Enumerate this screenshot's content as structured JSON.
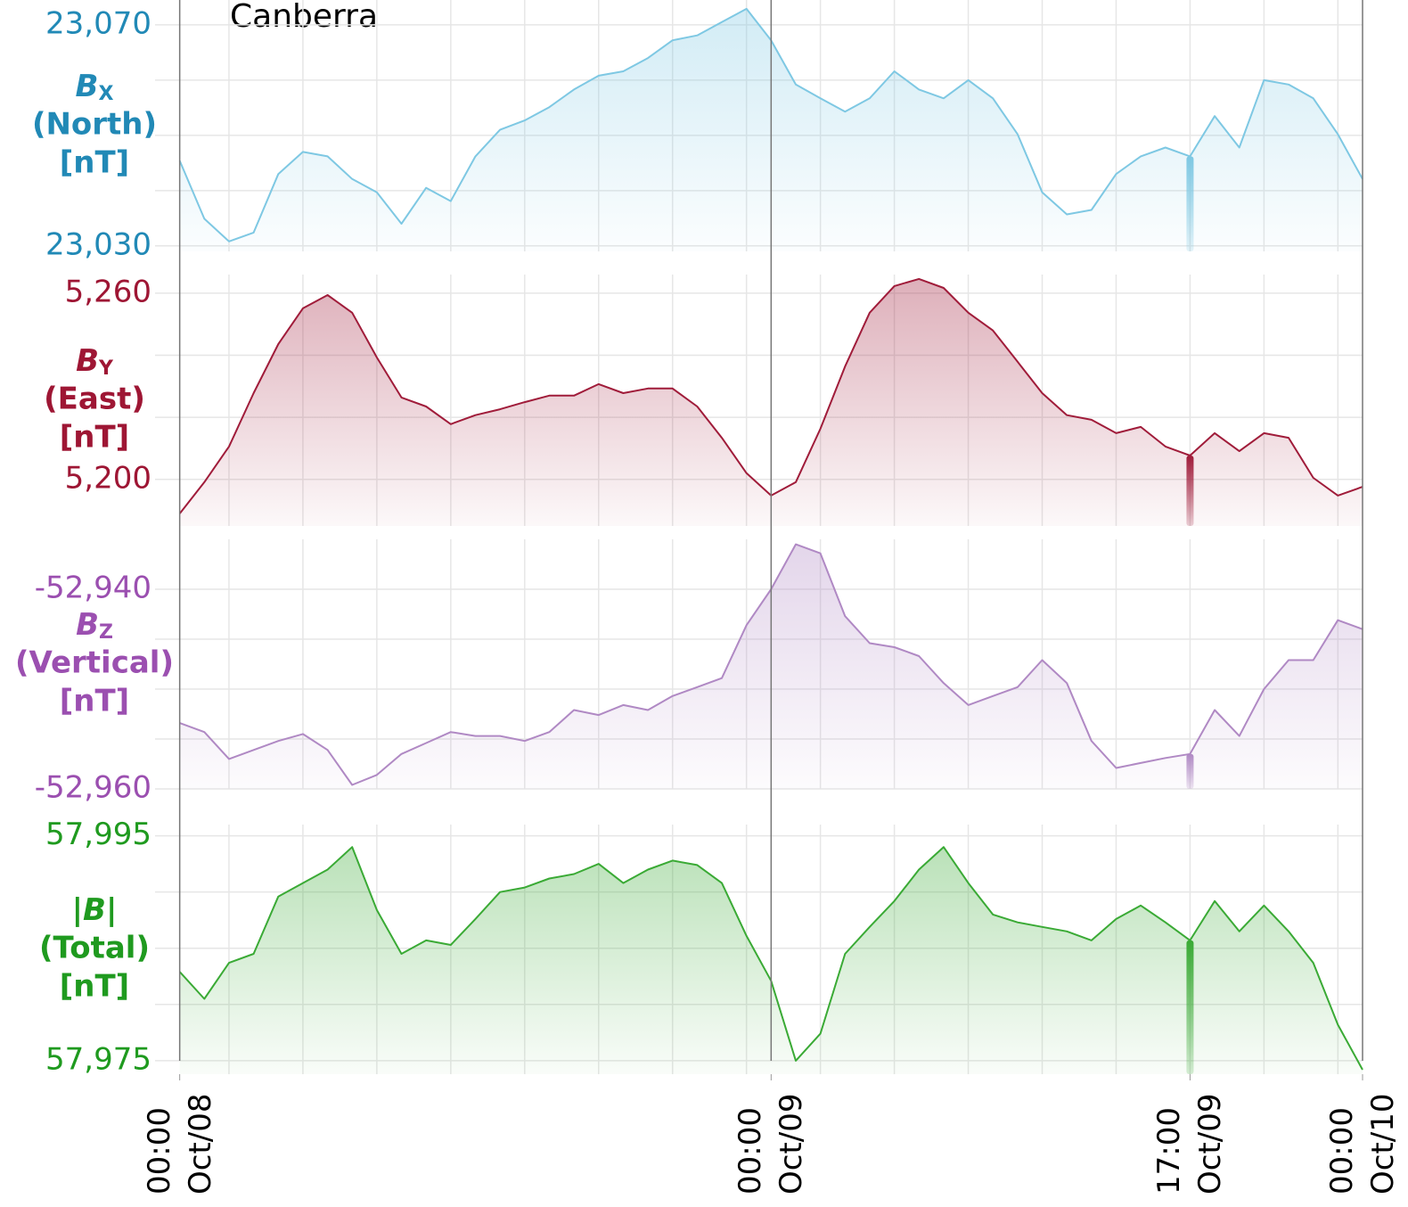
{
  "chart_data": {
    "type": "line",
    "title": "Canberra",
    "x": [
      0,
      1,
      2,
      3,
      4,
      5,
      6,
      7,
      8,
      9,
      10,
      11,
      12,
      13,
      14,
      15,
      16,
      17,
      18,
      19,
      20,
      21,
      22,
      23,
      24,
      25,
      26,
      27,
      28,
      29,
      30,
      31,
      32,
      33,
      34,
      35,
      36,
      37,
      38,
      39,
      40,
      41,
      42,
      43,
      44,
      45,
      46,
      47,
      48
    ],
    "xlim": [
      -1,
      48
    ],
    "xticks": [
      {
        "value": 0,
        "label": "00:00 Oct/08"
      },
      {
        "value": 24,
        "label": "00:00 Oct/09"
      },
      {
        "value": 41,
        "label": "17:00 Oct/09"
      },
      {
        "value": 48,
        "label": "00:00 Oct/10"
      }
    ],
    "xgrid": [
      2,
      5,
      8,
      11,
      14,
      17,
      20,
      23,
      26,
      29,
      32,
      35,
      38,
      41,
      44,
      47
    ],
    "day_boundaries": [
      0,
      24,
      48
    ],
    "highlight_x": 41,
    "series": [
      {
        "symbol": "B",
        "subscript": "X",
        "label_lines": [
          "(North)",
          "[nT]"
        ],
        "color": "#7ec8e3",
        "label_color": "#2189b6",
        "values": [
          23045.4,
          23034.9,
          23030.8,
          23032.4,
          23043,
          23047,
          23046.2,
          23042.1,
          23039.7,
          23034,
          23040.5,
          23038.1,
          23046.2,
          23051,
          23052.7,
          23055.1,
          23058.3,
          23060.8,
          23061.6,
          23064,
          23067.2,
          23068.1,
          23070.5,
          23072.9,
          23067.2,
          23059.2,
          23056.7,
          23054.3,
          23056.7,
          23061.6,
          23058.3,
          23056.7,
          23060,
          23056.7,
          23050.2,
          23039.7,
          23035.7,
          23036.5,
          23043,
          23046.2,
          23047.8,
          23046.2,
          23053.5,
          23047.8,
          23060,
          23059.2,
          23056.7,
          23050.2,
          23042.1
        ],
        "ylim": [
          23029,
          23074.5
        ],
        "yticks": [
          {
            "value": 23030,
            "label": "23,030"
          },
          {
            "value": 23070,
            "label": "23,070"
          }
        ],
        "ygrid": [
          23040,
          23050,
          23060
        ]
      },
      {
        "symbol": "B",
        "subscript": "Y",
        "label_lines": [
          "(East)",
          "[nT]"
        ],
        "color": "#a01c3a",
        "label_color": "#9e1634",
        "values": [
          5189,
          5199.1,
          5210.6,
          5227.8,
          5243.6,
          5255.1,
          5259.4,
          5253.7,
          5239.3,
          5226.4,
          5223.5,
          5217.8,
          5220.7,
          5222.6,
          5224.9,
          5227,
          5227,
          5230.7,
          5227.8,
          5229.3,
          5229.3,
          5223.5,
          5213.4,
          5202,
          5194.8,
          5199.1,
          5216.3,
          5236.4,
          5253.7,
          5262.3,
          5264.6,
          5261.7,
          5253.7,
          5248,
          5237.9,
          5227.8,
          5220.7,
          5219.2,
          5214.9,
          5216.9,
          5210.6,
          5207.7,
          5214.9,
          5209.1,
          5214.9,
          5213.4,
          5200.5,
          5194.8,
          5197.6
        ],
        "ylim": [
          5185,
          5266
        ],
        "yticks": [
          {
            "value": 5200,
            "label": "5,200"
          },
          {
            "value": 5260,
            "label": "5,260"
          }
        ],
        "ygrid": [
          5220,
          5240
        ]
      },
      {
        "symbol": "B",
        "subscript": "Z",
        "label_lines": [
          "(Vertical)",
          "[nT]"
        ],
        "color": "#b089c4",
        "label_color": "#9b4fb0",
        "values": [
          -52953.4,
          -52954.3,
          -52957,
          -52956.1,
          -52955.2,
          -52954.5,
          -52956.1,
          -52959.6,
          -52958.6,
          -52956.5,
          -52955.4,
          -52954.3,
          -52954.7,
          -52954.7,
          -52955.2,
          -52954.3,
          -52952.1,
          -52952.6,
          -52951.6,
          -52952.1,
          -52950.7,
          -52949.8,
          -52948.9,
          -52943.6,
          -52940,
          -52935.5,
          -52936.4,
          -52942.7,
          -52945.4,
          -52945.8,
          -52946.7,
          -52949.4,
          -52951.6,
          -52950.7,
          -52949.8,
          -52947.1,
          -52949.4,
          -52955.2,
          -52957.9,
          -52957.4,
          -52956.9,
          -52956.5,
          -52952.1,
          -52954.7,
          -52950,
          -52947.1,
          -52947.1,
          -52943.1,
          -52944
        ],
        "ylim": [
          -52960,
          -52935
        ],
        "yticks": [
          {
            "value": -52960,
            "label": "-52,960"
          },
          {
            "value": -52940,
            "label": "-52,940"
          }
        ],
        "ygrid": [
          -52955,
          -52950,
          -52945
        ]
      },
      {
        "symbol": "|B|",
        "label_lines": [
          "(Total)",
          "[nT]"
        ],
        "color": "#3aaa35",
        "label_color": "#1f9a1f",
        "values": [
          57982.9,
          57980.5,
          57983.7,
          57984.5,
          57989.6,
          57990.8,
          57992,
          57994,
          57988.4,
          57984.5,
          57985.7,
          57985.3,
          57987.6,
          57990,
          57990.4,
          57991.2,
          57991.6,
          57992.5,
          57990.8,
          57992,
          57992.8,
          57992.4,
          57990.8,
          57986.1,
          57982.1,
          57975,
          57977.4,
          57984.5,
          57986.9,
          57989.2,
          57992,
          57994,
          57990.8,
          57988,
          57987.3,
          57986.9,
          57986.5,
          57985.7,
          57987.6,
          57988.8,
          57987.3,
          57985.7,
          57989.2,
          57986.5,
          57988.8,
          57986.5,
          57983.7,
          57978.2,
          57974.2
        ],
        "ylim": [
          57973.8,
          57996
        ],
        "yticks": [
          {
            "value": 57975,
            "label": "57,975"
          },
          {
            "value": 57995,
            "label": "57,995"
          }
        ],
        "ygrid": [
          57980,
          57985,
          57990
        ]
      }
    ]
  }
}
